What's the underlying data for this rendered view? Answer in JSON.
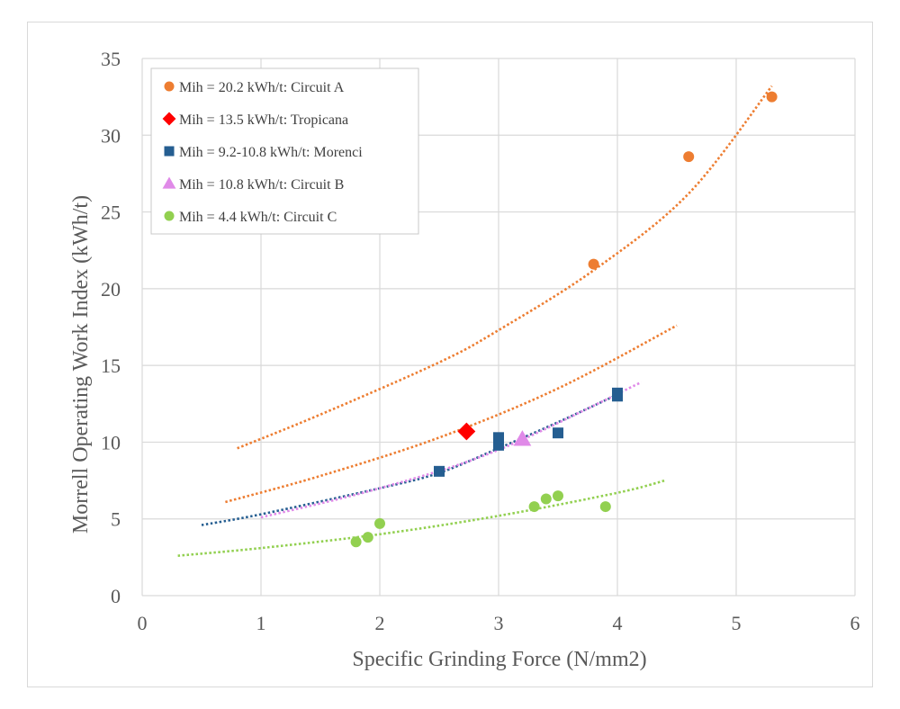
{
  "chart_data": {
    "type": "scatter",
    "title": "",
    "xlabel": "Specific Grinding Force (N/mm2)",
    "ylabel": "Morrell Operating Work Index (kWh/t)",
    "xlim": [
      0,
      6
    ],
    "ylim": [
      0,
      35
    ],
    "x_ticks": [
      "0",
      "1",
      "2",
      "3",
      "4",
      "5",
      "6"
    ],
    "y_ticks": [
      "0",
      "5",
      "10",
      "15",
      "20",
      "25",
      "30",
      "35"
    ],
    "grid": true,
    "legend_position": "top-left",
    "series": [
      {
        "name": "Mih = 20.2 kWh/t: Circuit A",
        "marker": "circle",
        "color": "#ED7D31",
        "points": [
          [
            3.8,
            21.6
          ],
          [
            4.6,
            28.6
          ],
          [
            5.3,
            32.5
          ]
        ]
      },
      {
        "name": "Mih = 13.5 kWh/t: Tropicana",
        "marker": "diamond",
        "color": "#FF0000",
        "points": [
          [
            2.73,
            10.7
          ]
        ]
      },
      {
        "name": "Mih = 9.2-10.8 kWh/t: Morenci",
        "marker": "square",
        "color": "#255E91",
        "points": [
          [
            2.5,
            8.1
          ],
          [
            3.0,
            10.3
          ],
          [
            3.0,
            9.8
          ],
          [
            3.5,
            10.6
          ],
          [
            4.0,
            13.2
          ],
          [
            4.0,
            13.0
          ]
        ]
      },
      {
        "name": "Mih = 10.8 kWh/t: Circuit B",
        "marker": "triangle",
        "color": "#E08AE8",
        "points": [
          [
            3.2,
            10.2
          ]
        ]
      },
      {
        "name": "Mih = 4.4 kWh/t: Circuit C",
        "marker": "circle",
        "color": "#92D050",
        "points": [
          [
            1.8,
            3.5
          ],
          [
            1.9,
            3.8
          ],
          [
            2.0,
            4.7
          ],
          [
            3.3,
            5.8
          ],
          [
            3.4,
            6.3
          ],
          [
            3.5,
            6.5
          ],
          [
            3.9,
            5.8
          ]
        ]
      }
    ],
    "trendlines": [
      {
        "color": "#ED7D31",
        "type": "exponential",
        "points": [
          [
            0.8,
            9.6
          ],
          [
            1.5,
            11.8
          ],
          [
            2.5,
            15.2
          ],
          [
            3.0,
            17.3
          ],
          [
            3.8,
            21.2
          ],
          [
            4.6,
            26.2
          ],
          [
            5.3,
            33.2
          ]
        ]
      },
      {
        "color": "#ED7D31",
        "type": "exponential",
        "points": [
          [
            0.7,
            6.1
          ],
          [
            1.5,
            7.8
          ],
          [
            2.5,
            10.3
          ],
          [
            3.5,
            13.5
          ],
          [
            4.5,
            17.6
          ]
        ]
      },
      {
        "color": "#255E91",
        "type": "exponential",
        "points": [
          [
            0.5,
            4.6
          ],
          [
            1.0,
            5.3
          ],
          [
            2.0,
            7.0
          ],
          [
            2.5,
            8.0
          ],
          [
            3.0,
            9.6
          ],
          [
            3.5,
            11.3
          ],
          [
            4.0,
            13.1
          ]
        ]
      },
      {
        "color": "#E08AE8",
        "type": "exponential",
        "points": [
          [
            1.0,
            5.1
          ],
          [
            2.0,
            7.0
          ],
          [
            3.0,
            9.5
          ],
          [
            4.2,
            13.9
          ]
        ]
      },
      {
        "color": "#92D050",
        "type": "exponential",
        "points": [
          [
            0.3,
            2.6
          ],
          [
            1.0,
            3.1
          ],
          [
            2.0,
            4.0
          ],
          [
            3.0,
            5.2
          ],
          [
            4.0,
            6.7
          ],
          [
            4.4,
            7.5
          ]
        ]
      }
    ]
  }
}
